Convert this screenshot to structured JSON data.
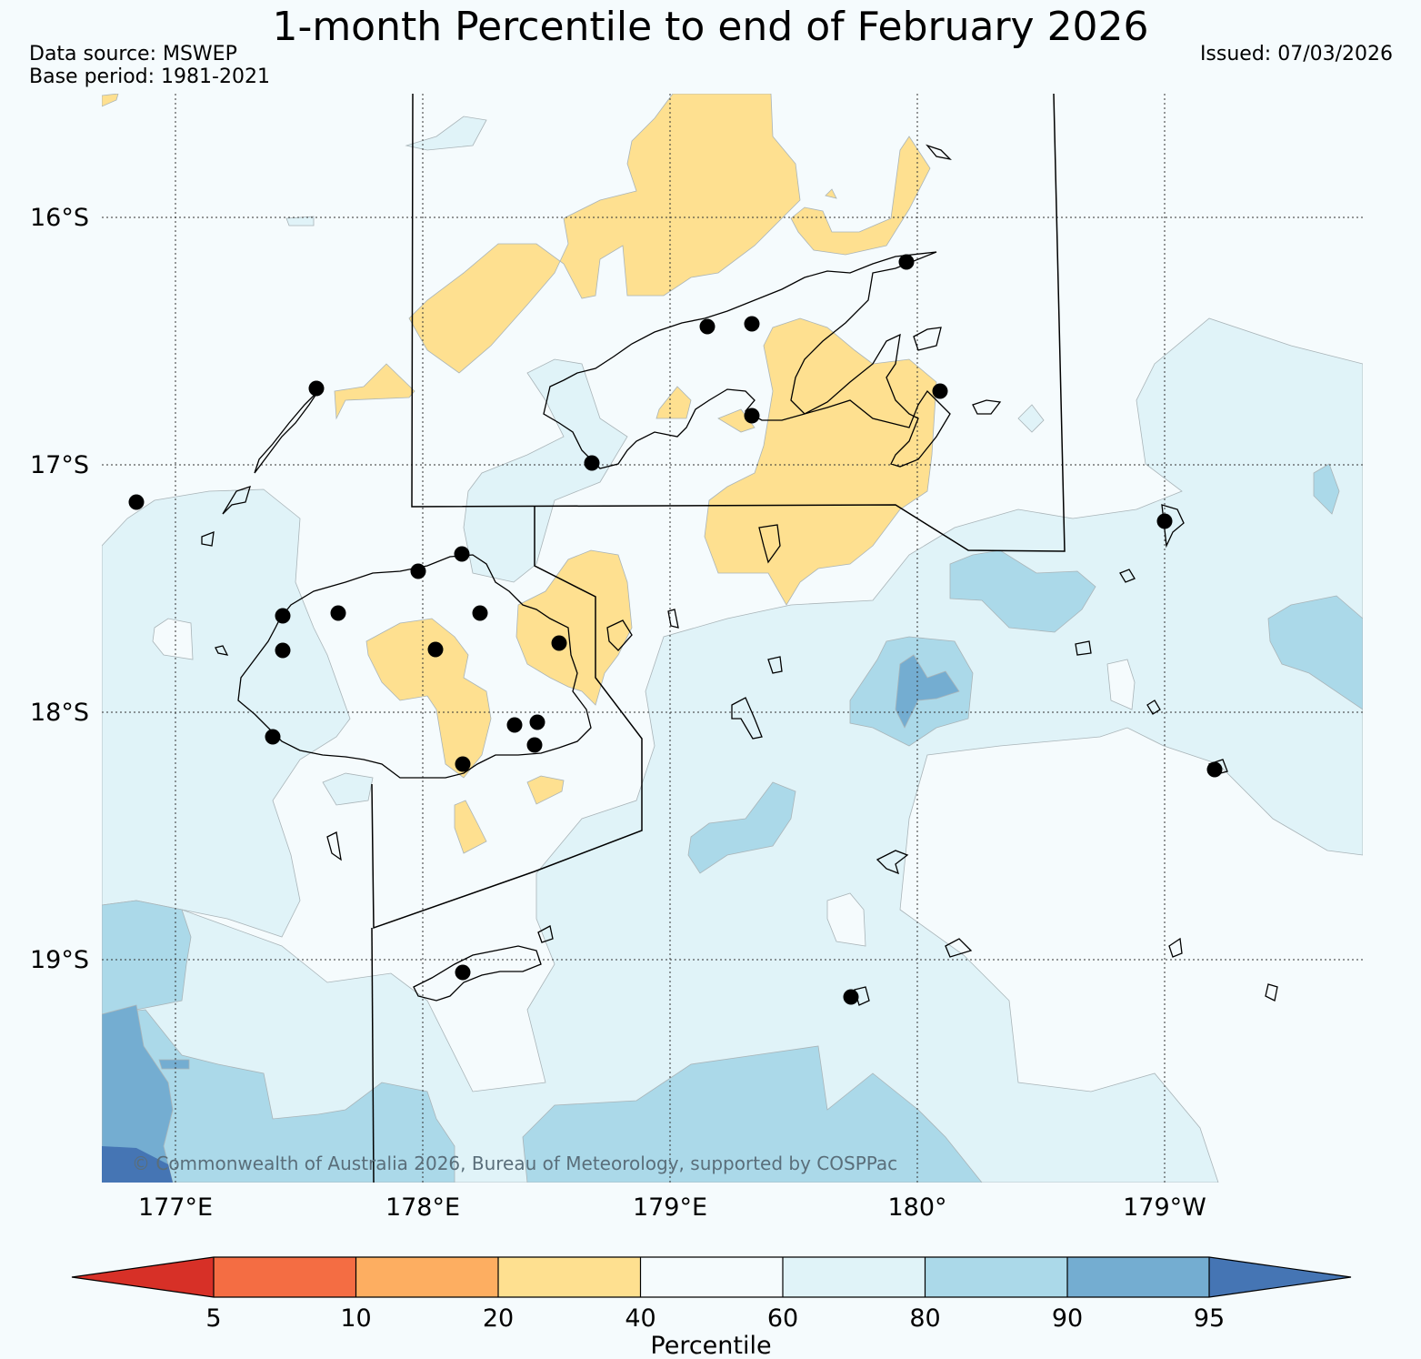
{
  "title": "1-month Percentile to end of February 2026",
  "data_source": "Data source: MSWEP",
  "base_period": "Base period: 1981-2021",
  "issued": "Issued: 07/03/2026",
  "copyright": "© Commonwealth of Australia 2026, Bureau of Meteorology, supported by COSPPac",
  "map": {
    "region": "Fiji",
    "lon_labels": [
      "177°E",
      "178°E",
      "179°E",
      "180°",
      "179°W"
    ],
    "lat_labels": [
      "16°S",
      "17°S",
      "18°S",
      "19°S"
    ]
  },
  "colorbar": {
    "title": "Percentile",
    "ticks": [
      "5",
      "10",
      "20",
      "40",
      "60",
      "80",
      "90",
      "95"
    ],
    "colors": {
      "below_5": "#d73027",
      "p5_10": "#f46d43",
      "p10_20": "#fdae61",
      "p20_40": "#fee090",
      "p40_60": "#f5fbfd",
      "p60_80": "#e0f3f8",
      "p80_90": "#abd9e9",
      "p90_95": "#74add1",
      "above_95": "#4575b4"
    }
  }
}
